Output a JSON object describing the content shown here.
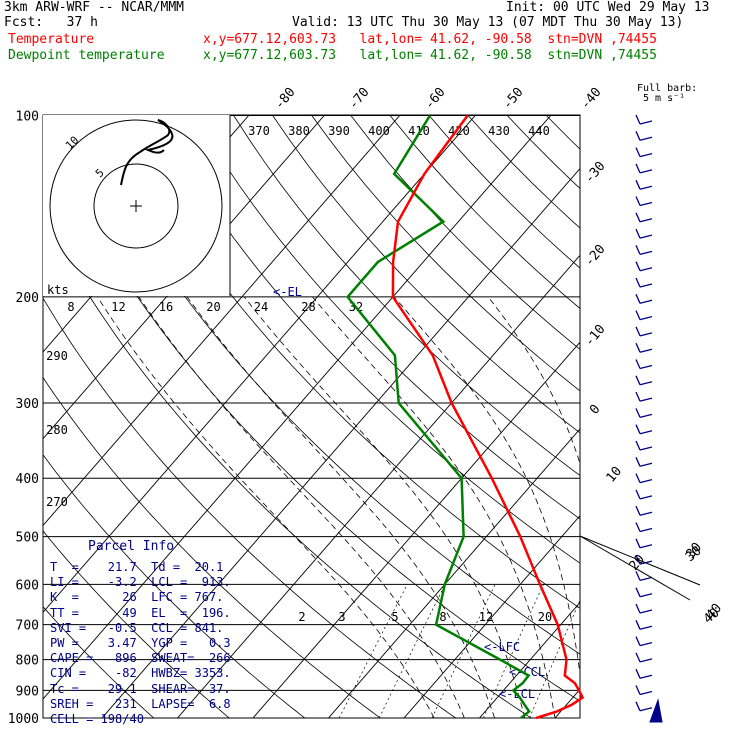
{
  "header": {
    "line1_left": "3km ARW-WRF -- NCAR/MMM",
    "line1_right": "Init: 00 UTC Wed 29 May 13",
    "line2_left": "Fcst:   37 h",
    "line2_right": "Valid: 13 UTC Thu 30 May 13 (07 MDT Thu 30 May 13)",
    "temp_label": "Temperature",
    "temp_info": "x,y=677.12,603.73   lat,lon= 41.62, -90.58  stn=DVN ,74455",
    "dew_label": "Dewpoint temperature",
    "dew_info": "x,y=677.12,603.73   lat,lon= 41.62, -90.58  stn=DVN ,74455",
    "barb_label1": "Full barb:",
    "barb_label2": "5 m s⁻¹"
  },
  "colors": {
    "temperature": "#ff0000",
    "dewpoint": "#008000",
    "index_text": "#00008b"
  },
  "chart_data": {
    "type": "skew-t",
    "pressure_levels": [
      "100",
      "200",
      "300",
      "400",
      "500",
      "600",
      "700",
      "800",
      "900",
      "1000"
    ],
    "skewed_isotherm_labels": [
      "-80",
      "-70",
      "-60",
      "-50",
      "-40",
      "-30",
      "-20",
      "-10",
      "0",
      "10",
      "20",
      "30",
      "40"
    ],
    "theta_labels": [
      "370",
      "380",
      "390",
      "400",
      "410",
      "420",
      "430",
      "440"
    ],
    "dry_adiabat_labels": [
      "290",
      "280",
      "270"
    ],
    "mixing_ratio_labels": [
      "2",
      "3",
      "5",
      "8",
      "12",
      "20"
    ],
    "hodograph": {
      "speed_labels": [
        "8",
        "12",
        "16",
        "20",
        "24",
        "28",
        "32"
      ],
      "unit": "kts",
      "ring_labels": [
        "5",
        "10"
      ]
    },
    "temperature_profile": [
      [
        1000,
        17.5
      ],
      [
        975,
        19.5
      ],
      [
        950,
        20.7
      ],
      [
        925,
        21.3
      ],
      [
        900,
        20.0
      ],
      [
        875,
        18.6
      ],
      [
        850,
        16.4
      ],
      [
        800,
        14.8
      ],
      [
        700,
        9.6
      ],
      [
        600,
        2.6
      ],
      [
        500,
        -5.5
      ],
      [
        400,
        -16
      ],
      [
        300,
        -30
      ],
      [
        250,
        -38
      ],
      [
        200,
        -50
      ],
      [
        175,
        -54
      ],
      [
        150,
        -58
      ],
      [
        125,
        -60
      ],
      [
        100,
        -61
      ]
    ],
    "dewpoint_profile": [
      [
        1000,
        15.5
      ],
      [
        975,
        15.8
      ],
      [
        950,
        14.4
      ],
      [
        925,
        13.0
      ],
      [
        900,
        11.3
      ],
      [
        875,
        11.7
      ],
      [
        850,
        11.6
      ],
      [
        800,
        6.0
      ],
      [
        700,
        -6.5
      ],
      [
        600,
        -10
      ],
      [
        500,
        -13
      ],
      [
        400,
        -20
      ],
      [
        300,
        -37
      ],
      [
        250,
        -43
      ],
      [
        200,
        -56
      ],
      [
        175,
        -56
      ],
      [
        150,
        -52
      ],
      [
        125,
        -64
      ],
      [
        100,
        -66
      ]
    ],
    "annotations": [
      "<-EL",
      "<-LFC",
      "<-CCL",
      "<-LCL"
    ],
    "wind_barb_labels": [
      "30",
      "40"
    ]
  },
  "parcel_info": {
    "title": "Parcel  Info",
    "rows": [
      "T  =    21.7  Td =  20.1",
      "LI =    -3.2  LCL =  913.",
      "K  =      26  LFC = 767.",
      "TT =      49  EL  =  196.",
      "SVI =   -0.5  CCL = 841.",
      "PW =    3.47  YGP =   0.3",
      "CAPE =   896  SWEAT=  266",
      "CIN =    -82  HWBZ= 3353.",
      "Tc =    29.1  SHEAR=  37.",
      "SREH =   231  LAPSE=  6.8",
      "CELL = 198/40"
    ]
  }
}
